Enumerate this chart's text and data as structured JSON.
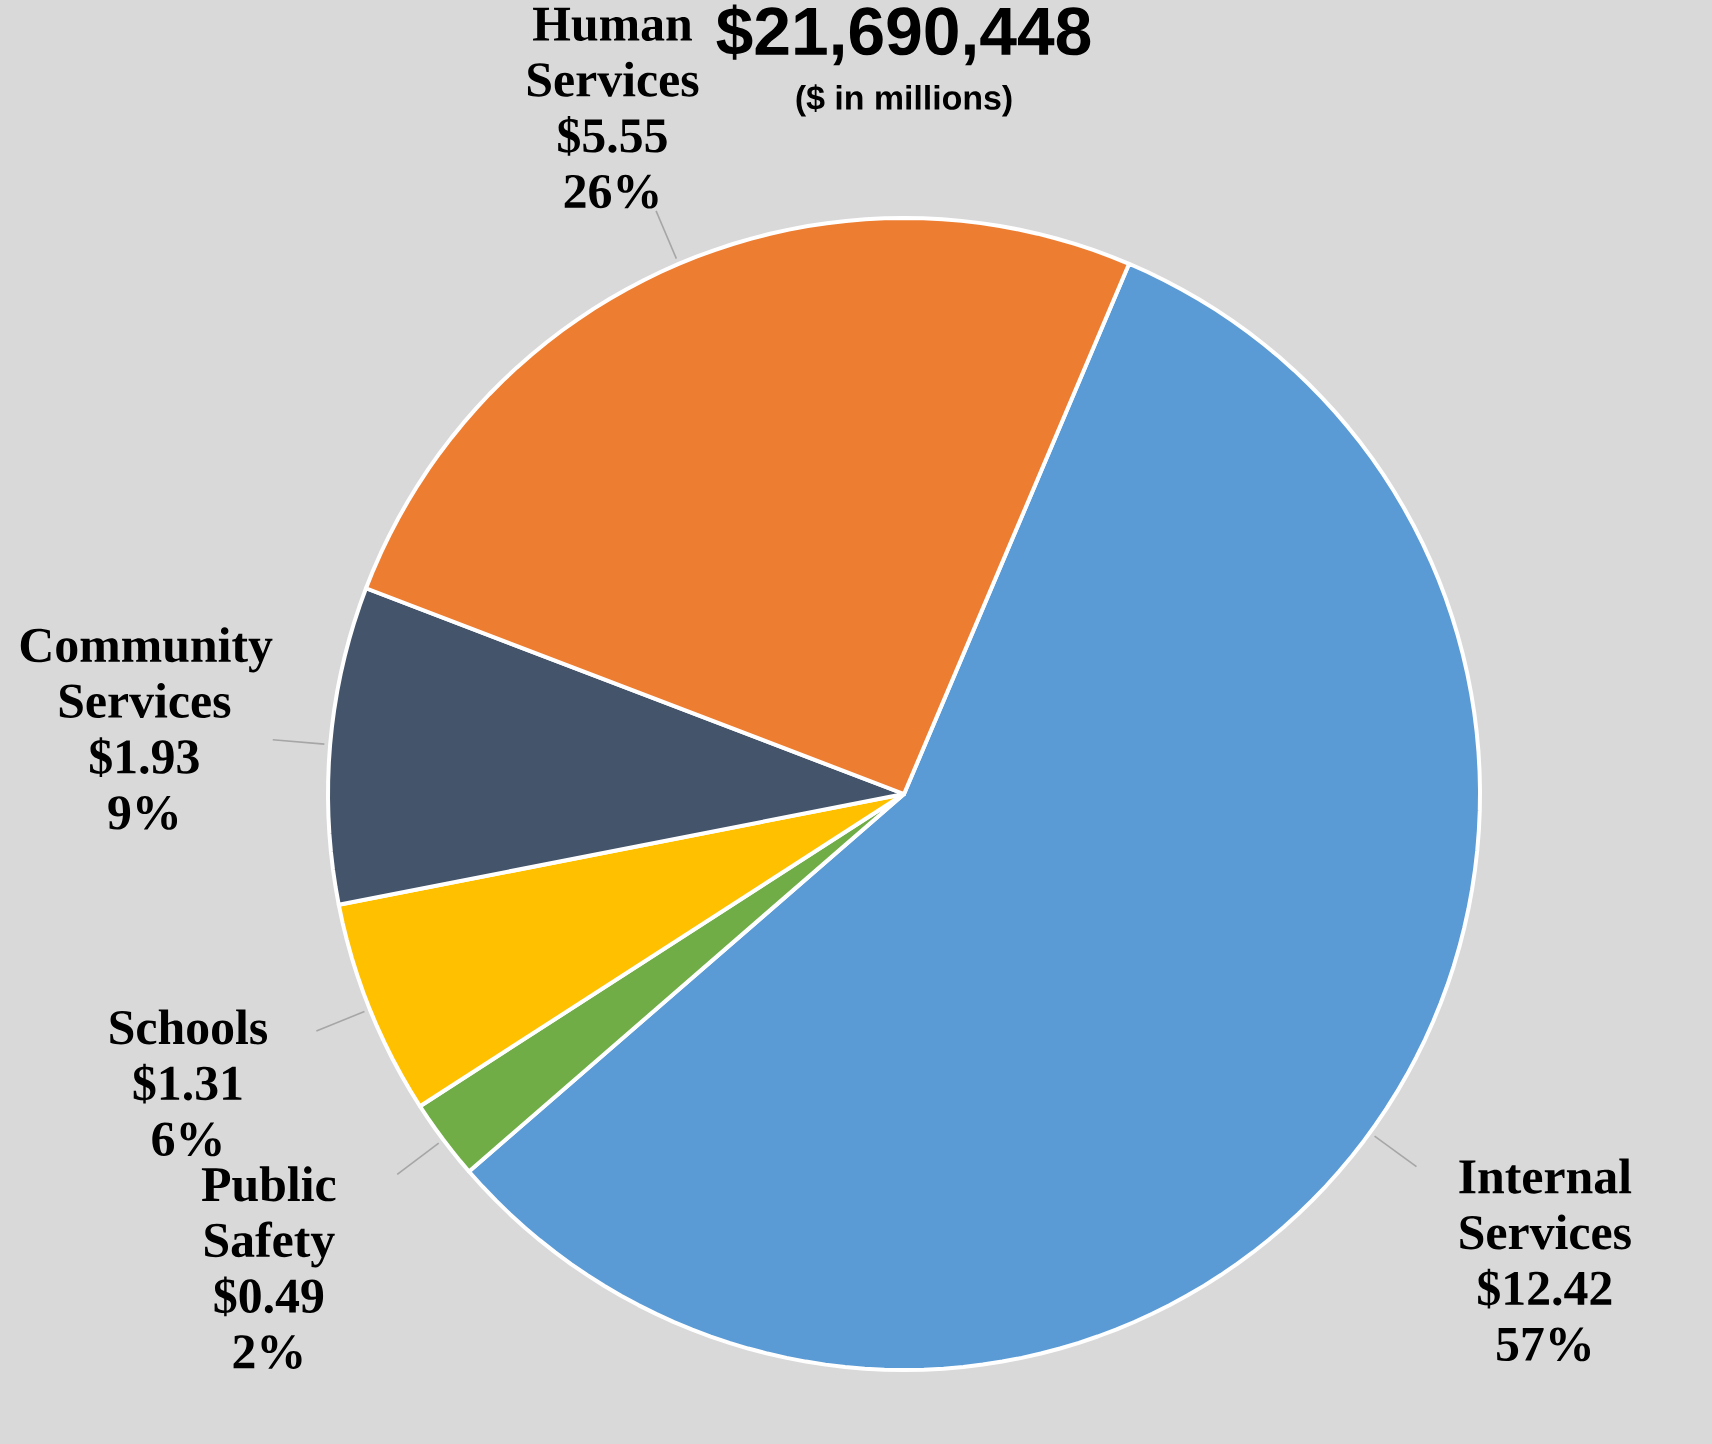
{
  "chart_data": {
    "type": "pie",
    "title": "$21,690,448",
    "subtitle": "($ in millions)",
    "categories": [
      "Internal Services",
      "Public Safety",
      "Schools",
      "Community Services",
      "Human Services"
    ],
    "values": [
      12.42,
      0.49,
      1.31,
      1.93,
      5.55
    ],
    "colors": [
      "#5b9bd5",
      "#70ad47",
      "#ffc000",
      "#44546a",
      "#ed7d31"
    ],
    "value_labels": [
      "$12.42",
      "$0.49",
      "$1.31",
      "$1.93",
      "$5.55"
    ],
    "annotations": [
      "57%",
      "2%",
      "6%",
      "9%",
      "26%"
    ]
  }
}
